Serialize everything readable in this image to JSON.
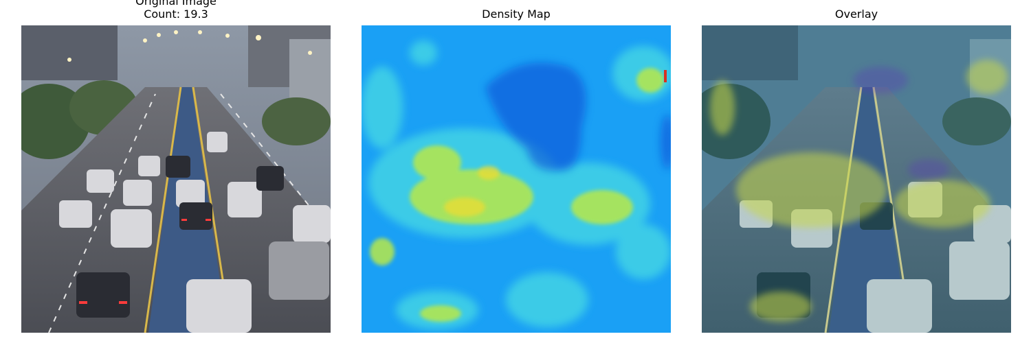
{
  "panels": [
    {
      "title": "Original Image",
      "subtitle": "Count: 19.3",
      "content": "traffic-photo"
    },
    {
      "title": "Density Map",
      "content": "density-heatmap"
    },
    {
      "title": "Overlay",
      "content": "overlay-photo"
    }
  ],
  "colors": {
    "background": "#ffffff",
    "heatmap_low": "#1aa0f5",
    "heatmap_mid": "#33c9e6",
    "heatmap_high": "#d8e23a",
    "overlay_tint": "#2f8fb0"
  }
}
